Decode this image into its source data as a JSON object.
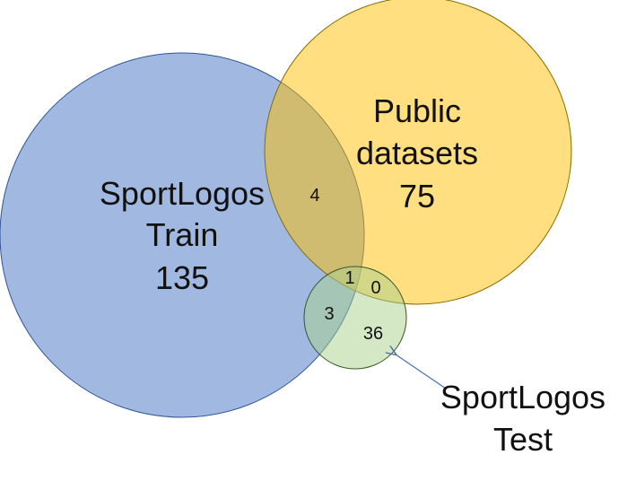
{
  "venn": {
    "sets": {
      "train": {
        "line1": "SportLogos",
        "line2": "Train",
        "count": "135",
        "color": "#4472C4"
      },
      "public": {
        "line1": "Public",
        "line2": "datasets",
        "count": "75",
        "color": "#FFC000"
      },
      "test": {
        "line1": "SportLogos",
        "line2": "Test",
        "color": "#A9D18E"
      }
    },
    "intersections": {
      "train_public": "4",
      "train_public_test": "1",
      "public_test": "0",
      "train_test": "3",
      "test_only": "36"
    }
  }
}
